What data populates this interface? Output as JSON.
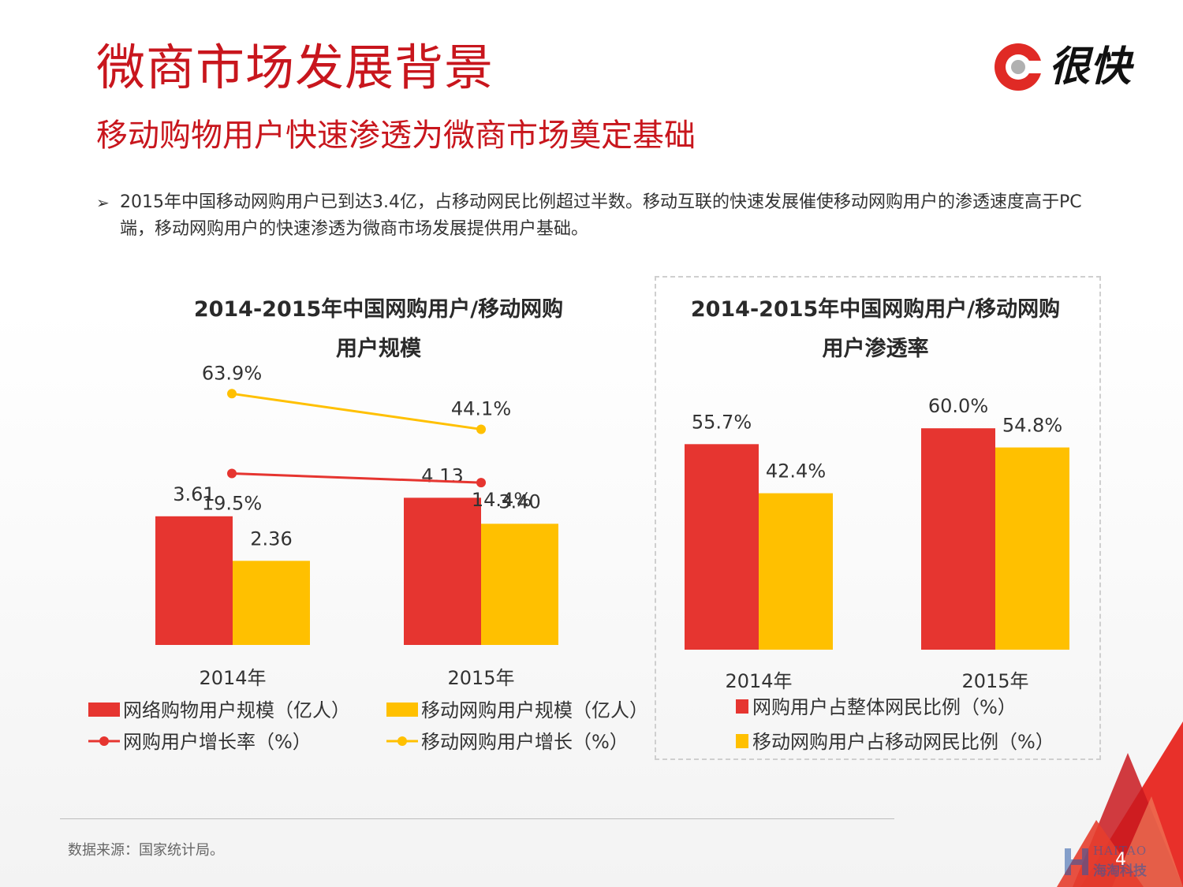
{
  "header": {
    "title": "微商市场发展背景",
    "subtitle": "移动购物用户快速渗透为微商市场奠定基础"
  },
  "logo": {
    "text": "很快",
    "icon": "logo-circle-icon"
  },
  "bullet": {
    "icon": "arrow-bullet-icon",
    "text": "2015年中国移动网购用户已到达3.4亿，占移动网民比例超过半数。移动互联的快速发展催使移动网购用户的渗透速度高于PC端，移动网购用户的快速渗透为微商市场发展提供用户基础。"
  },
  "chart_data": [
    {
      "type": "bar",
      "title_line1": "2014-2015年中国网购用户/移动网购",
      "title_line2": "用户规模",
      "categories": [
        "2014年",
        "2015年"
      ],
      "series": [
        {
          "name": "网络购物用户规模（亿人）",
          "values": [
            3.61,
            4.13
          ],
          "labels": [
            "3.61",
            "4.13"
          ],
          "color": "#e63530"
        },
        {
          "name": "移动网购用户规模（亿人）",
          "values": [
            2.36,
            3.4
          ],
          "labels": [
            "2.36",
            "3.40"
          ],
          "color": "#ffc000"
        }
      ],
      "line_series": [
        {
          "name": "网购用户增长率（%）",
          "values": [
            19.5,
            14.4
          ],
          "labels": [
            "19.5%",
            "14.4%"
          ],
          "color": "#e63530"
        },
        {
          "name": "移动网购用户增长（%）",
          "values": [
            63.9,
            44.1
          ],
          "labels": [
            "63.9%",
            "44.1%"
          ],
          "color": "#ffc000"
        }
      ],
      "legend_position": "bottom"
    },
    {
      "type": "bar",
      "title_line1": "2014-2015年中国网购用户/移动网购",
      "title_line2": "用户渗透率",
      "categories": [
        "2014年",
        "2015年"
      ],
      "series": [
        {
          "name": "网购用户占整体网民比例（%）",
          "values": [
            55.7,
            60.0
          ],
          "labels": [
            "55.7%",
            "60.0%"
          ],
          "color": "#e63530"
        },
        {
          "name": "移动网购用户占移动网民比例（%）",
          "values": [
            42.4,
            54.8
          ],
          "labels": [
            "42.4%",
            "54.8%"
          ],
          "color": "#ffc000"
        }
      ],
      "legend_position": "bottom"
    }
  ],
  "footer": {
    "source": "数据来源：国家统计局。",
    "page_number": "4",
    "watermark_en": "HAITAO",
    "watermark_cn": "海淘科技"
  }
}
